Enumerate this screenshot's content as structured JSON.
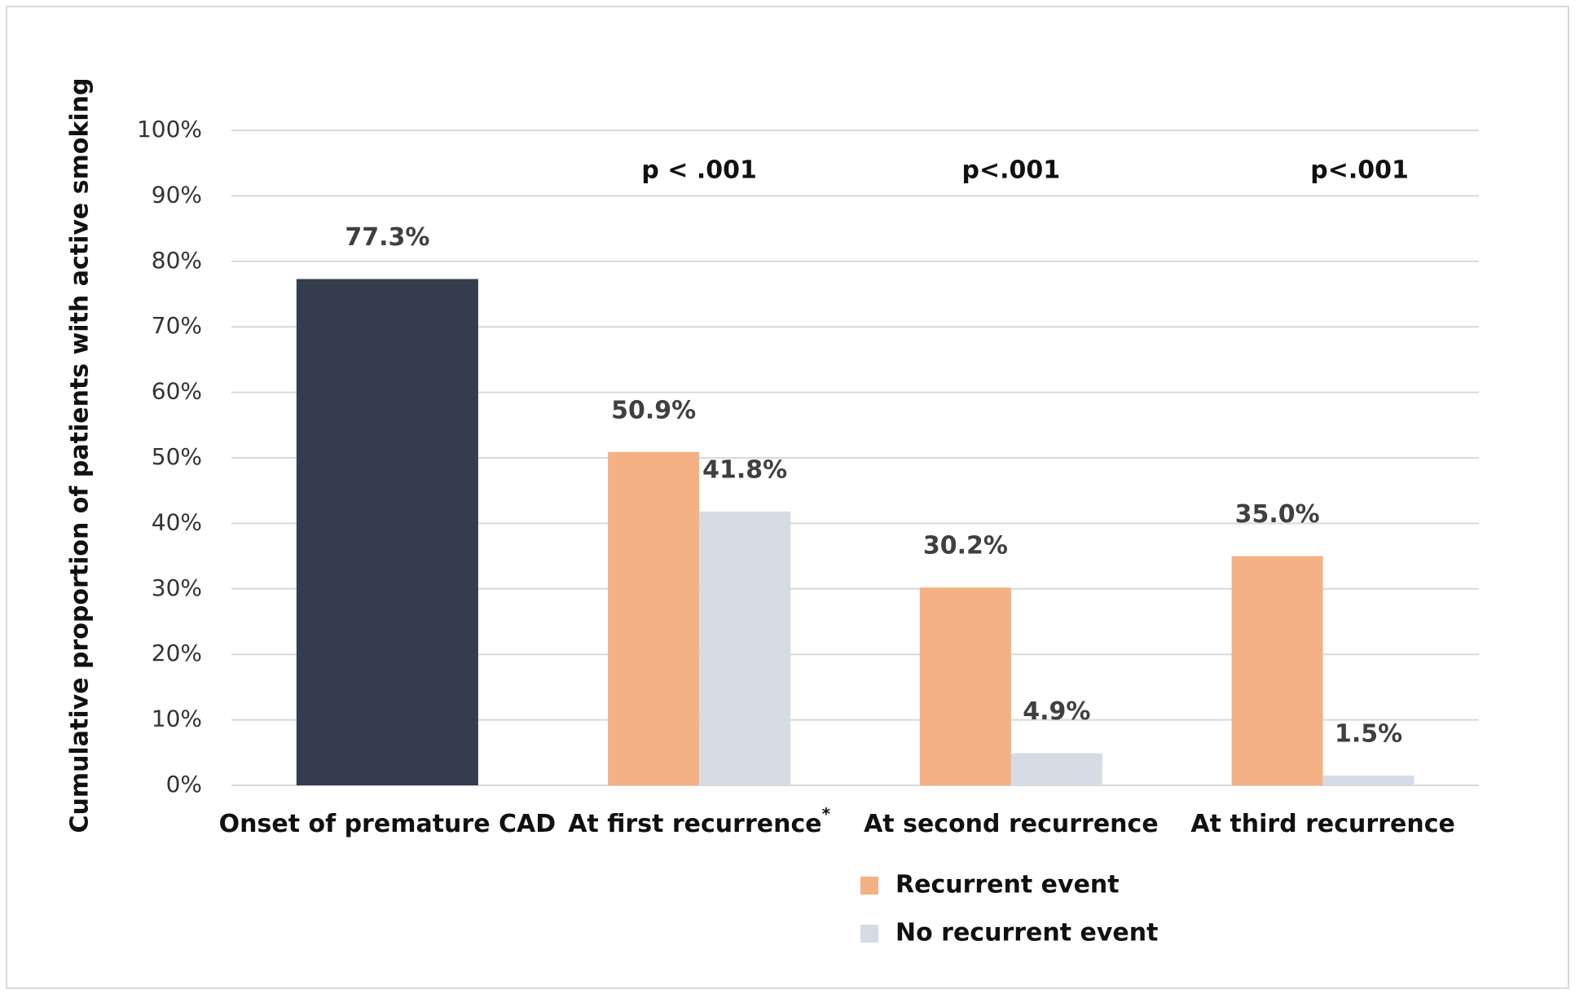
{
  "chart_data": {
    "type": "bar",
    "y_label": "Cumulative proportion of patients with active smoking",
    "categories": [
      "Onset of premature CAD",
      "At first recurrence",
      "At second recurrence",
      "At third recurrence"
    ],
    "category_marks": [
      null,
      "*",
      null,
      null
    ],
    "annotations": [
      null,
      "p < .001",
      "p<.001",
      "p<.001"
    ],
    "series": [
      {
        "color": "#343d4e",
        "values": [
          77.3,
          null,
          null,
          null
        ],
        "value_labels": [
          "77.3%",
          null,
          null,
          null
        ]
      },
      {
        "name": "Recurrent event",
        "color": "#f4b183",
        "values": [
          null,
          50.9,
          30.2,
          35.0
        ],
        "value_labels": [
          null,
          "50.9%",
          "30.2%",
          "35.0%"
        ]
      },
      {
        "name": "No recurrent event",
        "color": "#d6dce5",
        "values": [
          null,
          41.8,
          4.9,
          1.5
        ],
        "value_labels": [
          null,
          "41.8%",
          "4.9%",
          "1.5%"
        ]
      }
    ],
    "ylim": [
      0,
      100
    ],
    "yticks": [
      {
        "value": 0,
        "label": "0%"
      },
      {
        "value": 10,
        "label": "10%"
      },
      {
        "value": 20,
        "label": "20%"
      },
      {
        "value": 30,
        "label": "30%"
      },
      {
        "value": 40,
        "label": "40%"
      },
      {
        "value": 50,
        "label": "50%"
      },
      {
        "value": 60,
        "label": "60%"
      },
      {
        "value": 70,
        "label": "70%"
      },
      {
        "value": 80,
        "label": "80%"
      },
      {
        "value": 90,
        "label": "90%"
      },
      {
        "value": 100,
        "label": "100%"
      }
    ],
    "grid": true
  }
}
